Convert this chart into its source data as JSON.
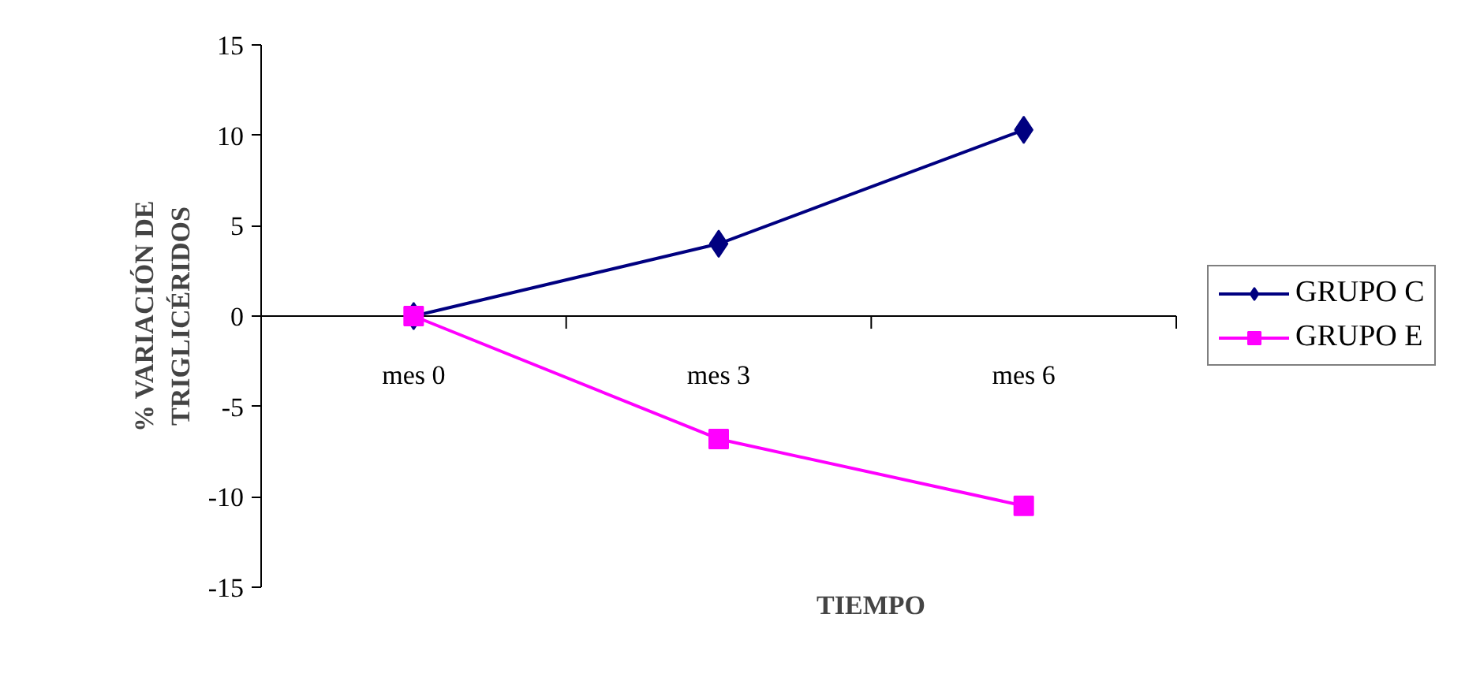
{
  "chart_data": {
    "type": "line",
    "xlabel": "TIEMPO",
    "ylabel": "% VARIACIÓN DE\nTRIGLICÉRIDOS",
    "categories": [
      "mes 0",
      "mes 3",
      "mes 6"
    ],
    "series": [
      {
        "name": "GRUPO C",
        "color": "#000080",
        "marker": "diamond",
        "values": [
          0,
          4.0,
          10.3
        ]
      },
      {
        "name": "GRUPO E",
        "color": "#ff00ff",
        "marker": "square",
        "values": [
          0,
          -6.8,
          -10.5
        ]
      }
    ],
    "ylim": [
      -15,
      15
    ],
    "yticks": [
      -15,
      -10,
      -5,
      0,
      5,
      10,
      15
    ],
    "grid": false,
    "legend": "right"
  }
}
